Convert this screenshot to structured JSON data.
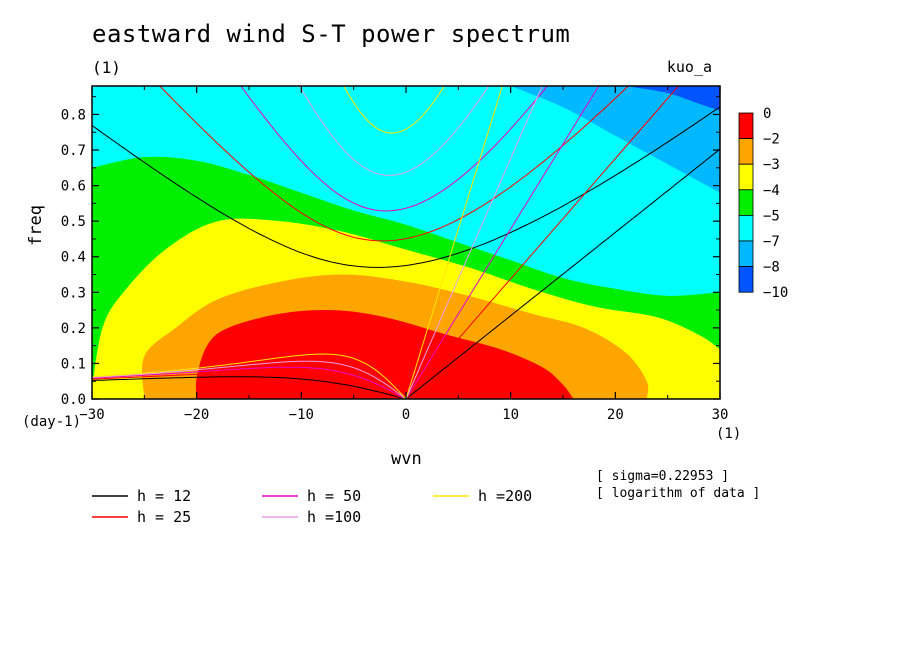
{
  "chart_data": {
    "type": "heatmap",
    "title": "eastward wind S-T power spectrum",
    "subtitle_left": "(1)",
    "subtitle_right": "kuo_a",
    "xlabel": "wvn",
    "ylabel": "freq",
    "x_unit": "(1)",
    "y_unit": "(day-1)",
    "xlim": [
      -30,
      30
    ],
    "ylim": [
      0,
      0.88
    ],
    "x_ticks": [
      -30,
      -20,
      -10,
      0,
      10,
      20,
      30
    ],
    "y_ticks": [
      0.0,
      0.1,
      0.2,
      0.3,
      0.4,
      0.5,
      0.6,
      0.7,
      0.8
    ],
    "colorbar": {
      "levels": [
        "0",
        "-2",
        "-3",
        "-4",
        "-5",
        "-7",
        "-8",
        "-10"
      ],
      "colors": [
        "#ff0000",
        "#ffa500",
        "#ffff00",
        "#00ee00",
        "#00ffff",
        "#00b8ff",
        "#0055ff"
      ]
    },
    "shaded_regions": [
      {
        "level": "-7 to -8",
        "color": "#00b8ff",
        "boundary": [
          [
            10,
            0.88
          ],
          [
            15,
            0.82
          ],
          [
            20,
            0.74
          ],
          [
            25,
            0.66
          ],
          [
            30,
            0.58
          ]
        ]
      },
      {
        "level": "-8 to -10",
        "color": "#0055ff",
        "boundary": [
          [
            21,
            0.88
          ],
          [
            25,
            0.86
          ],
          [
            28,
            0.83
          ],
          [
            30,
            0.81
          ]
        ]
      },
      {
        "level": "-5 to -7",
        "color": "#00ffff",
        "boundary": [
          [
            -26,
            0.88
          ],
          [
            -20,
            0.85
          ],
          [
            -15,
            0.79
          ],
          [
            -10,
            0.74
          ],
          [
            -5,
            0.68
          ],
          [
            0,
            0.64
          ],
          [
            5,
            0.6
          ],
          [
            10,
            0.55
          ],
          [
            15,
            0.5
          ],
          [
            20,
            0.46
          ],
          [
            25,
            0.42
          ],
          [
            30,
            0.38
          ]
        ]
      },
      {
        "level": "-4 to -5",
        "color": "#00ee00",
        "boundary": [
          [
            -30,
            0.65
          ],
          [
            -25,
            0.68
          ],
          [
            -20,
            0.67
          ],
          [
            -15,
            0.63
          ],
          [
            -10,
            0.58
          ],
          [
            -5,
            0.53
          ],
          [
            0,
            0.49
          ],
          [
            5,
            0.44
          ],
          [
            10,
            0.39
          ],
          [
            15,
            0.34
          ],
          [
            20,
            0.31
          ],
          [
            25,
            0.29
          ],
          [
            30,
            0.3
          ]
        ]
      },
      {
        "level": "-3 to -4",
        "color": "#ffff00",
        "boundary": [
          [
            -30,
            0.03
          ],
          [
            -29,
            0.2
          ],
          [
            -27,
            0.3
          ],
          [
            -23,
            0.42
          ],
          [
            -18,
            0.5
          ],
          [
            -12,
            0.5
          ],
          [
            -6,
            0.47
          ],
          [
            0,
            0.42
          ],
          [
            6,
            0.37
          ],
          [
            12,
            0.31
          ],
          [
            18,
            0.26
          ],
          [
            24,
            0.23
          ],
          [
            28,
            0.18
          ],
          [
            30,
            0.14
          ]
        ]
      },
      {
        "level": "-2 to -3",
        "color": "#ffa500",
        "boundary": [
          [
            -25,
            0.0
          ],
          [
            -25,
            0.12
          ],
          [
            -22,
            0.2
          ],
          [
            -18,
            0.28
          ],
          [
            -12,
            0.33
          ],
          [
            -6,
            0.35
          ],
          [
            0,
            0.33
          ],
          [
            6,
            0.29
          ],
          [
            12,
            0.24
          ],
          [
            17,
            0.2
          ],
          [
            21,
            0.13
          ],
          [
            23,
            0.05
          ],
          [
            23,
            0.0
          ]
        ]
      },
      {
        "level": "0 to -2",
        "color": "#ff0000",
        "boundary": [
          [
            -20,
            0.0
          ],
          [
            -20,
            0.06
          ],
          [
            -19,
            0.15
          ],
          [
            -17,
            0.2
          ],
          [
            -12,
            0.24
          ],
          [
            -7,
            0.25
          ],
          [
            -2,
            0.23
          ],
          [
            4,
            0.18
          ],
          [
            9,
            0.14
          ],
          [
            13,
            0.09
          ],
          [
            15,
            0.04
          ],
          [
            16,
            0.0
          ]
        ]
      }
    ],
    "legend": [
      {
        "label": "h = 12",
        "color": "#000000"
      },
      {
        "label": "h = 25",
        "color": "#ff0000"
      },
      {
        "label": "h = 50",
        "color": "#e800c8"
      },
      {
        "label": "h =100",
        "color": "#e8a0e8"
      },
      {
        "label": "h =200",
        "color": "#ffe600"
      }
    ],
    "annotations": [
      "[ sigma=0.22953 ]",
      "[ logarithm of data ]"
    ]
  }
}
